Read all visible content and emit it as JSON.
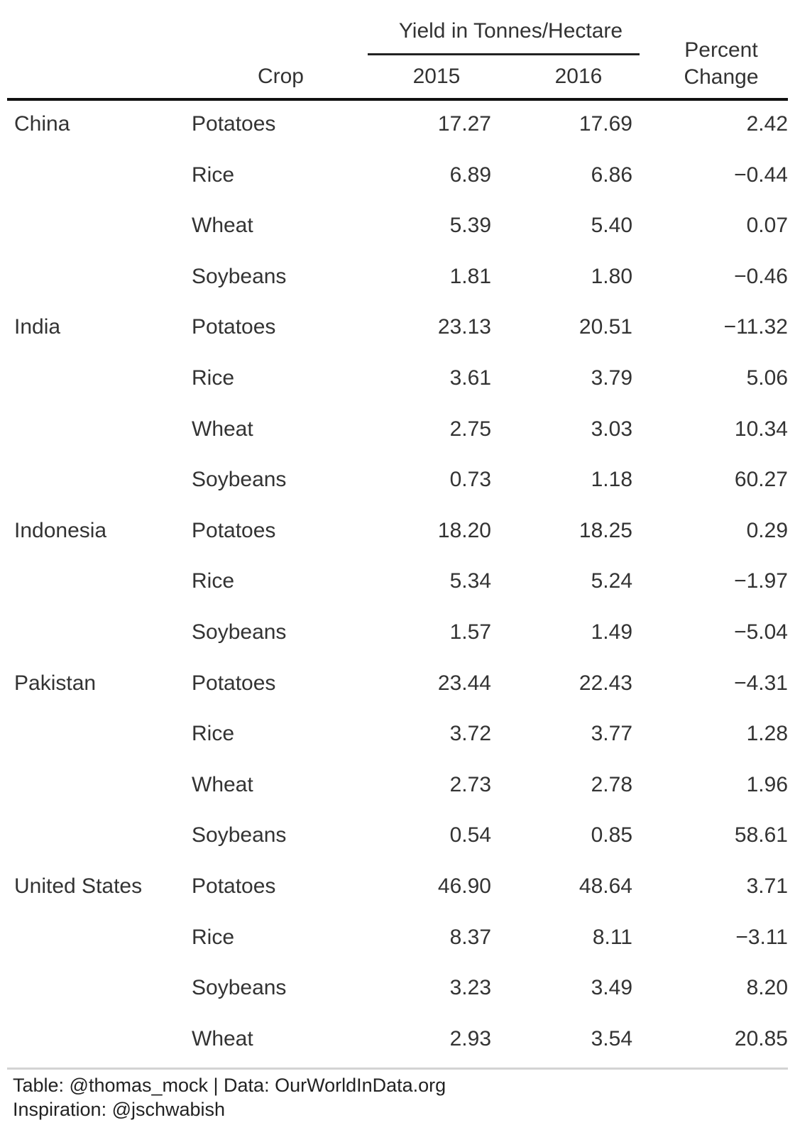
{
  "header": {
    "spanner": "Yield in Tonnes/Hectare",
    "crop_col": "Crop",
    "year_a": "2015",
    "year_b": "2016",
    "pct_line1": "Percent",
    "pct_line2": "Change"
  },
  "rows": [
    {
      "country": "China",
      "crop": "Potatoes",
      "y2015": "17.27",
      "y2016": "17.69",
      "pct": "2.42"
    },
    {
      "country": "",
      "crop": "Rice",
      "y2015": "6.89",
      "y2016": "6.86",
      "pct": "−0.44"
    },
    {
      "country": "",
      "crop": "Wheat",
      "y2015": "5.39",
      "y2016": "5.40",
      "pct": "0.07"
    },
    {
      "country": "",
      "crop": "Soybeans",
      "y2015": "1.81",
      "y2016": "1.80",
      "pct": "−0.46"
    },
    {
      "country": "India",
      "crop": "Potatoes",
      "y2015": "23.13",
      "y2016": "20.51",
      "pct": "−11.32"
    },
    {
      "country": "",
      "crop": "Rice",
      "y2015": "3.61",
      "y2016": "3.79",
      "pct": "5.06"
    },
    {
      "country": "",
      "crop": "Wheat",
      "y2015": "2.75",
      "y2016": "3.03",
      "pct": "10.34"
    },
    {
      "country": "",
      "crop": "Soybeans",
      "y2015": "0.73",
      "y2016": "1.18",
      "pct": "60.27"
    },
    {
      "country": "Indonesia",
      "crop": "Potatoes",
      "y2015": "18.20",
      "y2016": "18.25",
      "pct": "0.29"
    },
    {
      "country": "",
      "crop": "Rice",
      "y2015": "5.34",
      "y2016": "5.24",
      "pct": "−1.97"
    },
    {
      "country": "",
      "crop": "Soybeans",
      "y2015": "1.57",
      "y2016": "1.49",
      "pct": "−5.04"
    },
    {
      "country": "Pakistan",
      "crop": "Potatoes",
      "y2015": "23.44",
      "y2016": "22.43",
      "pct": "−4.31"
    },
    {
      "country": "",
      "crop": "Rice",
      "y2015": "3.72",
      "y2016": "3.77",
      "pct": "1.28"
    },
    {
      "country": "",
      "crop": "Wheat",
      "y2015": "2.73",
      "y2016": "2.78",
      "pct": "1.96"
    },
    {
      "country": "",
      "crop": "Soybeans",
      "y2015": "0.54",
      "y2016": "0.85",
      "pct": "58.61"
    },
    {
      "country": "United States",
      "crop": "Potatoes",
      "y2015": "46.90",
      "y2016": "48.64",
      "pct": "3.71"
    },
    {
      "country": "",
      "crop": "Rice",
      "y2015": "8.37",
      "y2016": "8.11",
      "pct": "−3.11"
    },
    {
      "country": "",
      "crop": "Soybeans",
      "y2015": "3.23",
      "y2016": "3.49",
      "pct": "8.20"
    },
    {
      "country": "",
      "crop": "Wheat",
      "y2015": "2.93",
      "y2016": "3.54",
      "pct": "20.85"
    }
  ],
  "footer": {
    "source": "Table: @thomas_mock | Data: OurWorldInData.org",
    "inspiration": "Inspiration: @jschwabish"
  }
}
